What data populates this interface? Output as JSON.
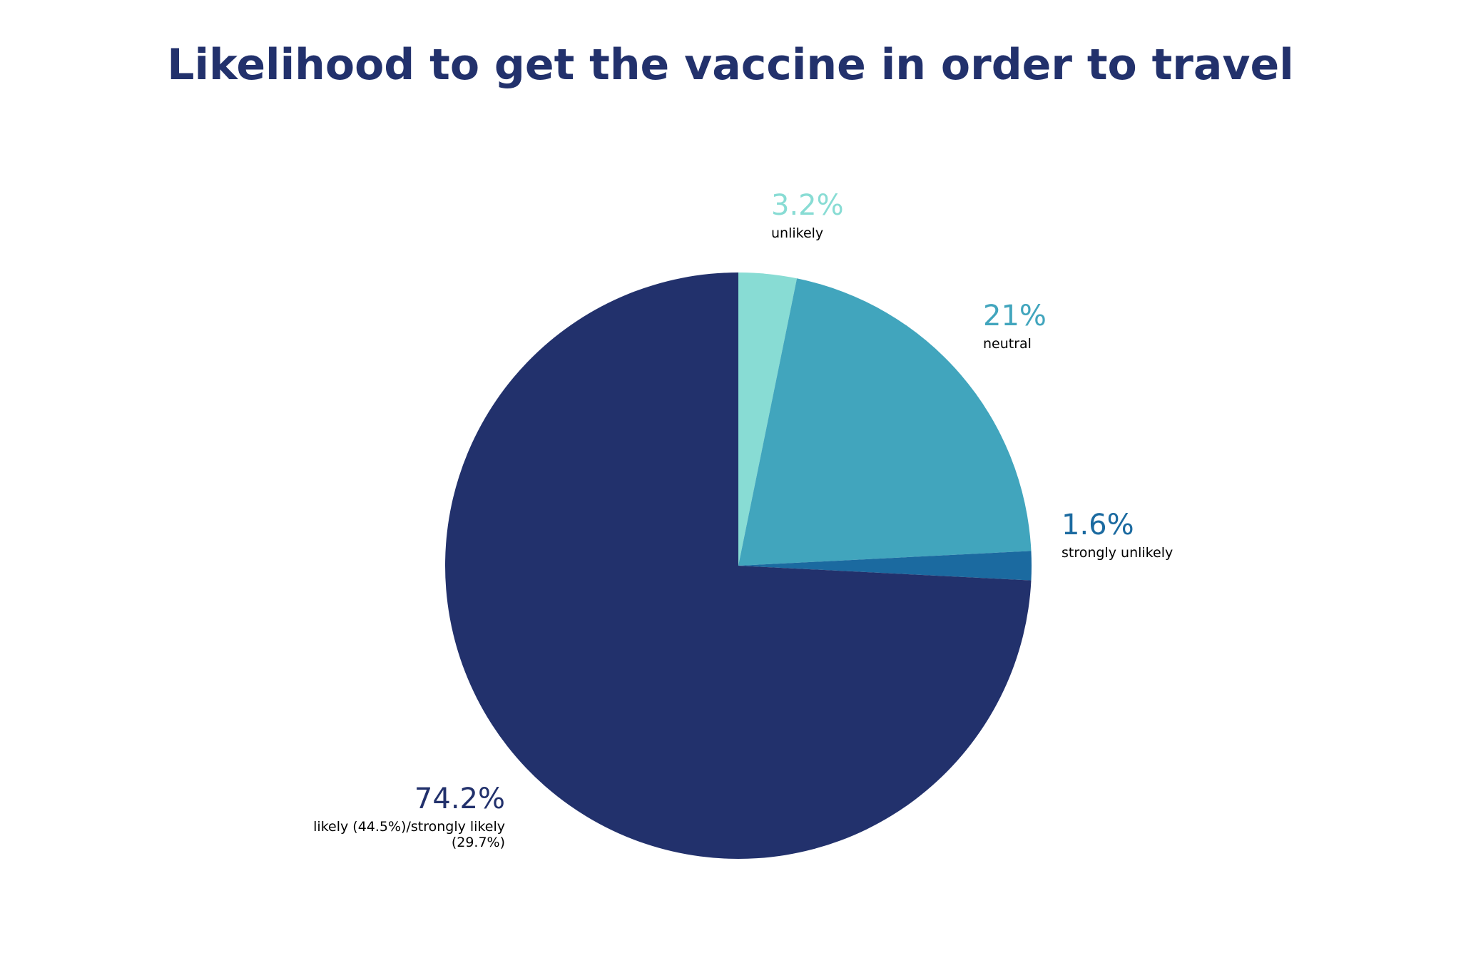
{
  "chart_data": {
    "type": "pie",
    "title": "Likelihood to get the vaccine in order to travel",
    "categories": [
      "unlikely",
      "neutral",
      "strongly unlikely",
      "likely (44.5%)/strongly likely (29.7%)"
    ],
    "values": [
      3.2,
      21,
      1.6,
      74.2
    ],
    "value_labels": [
      "3.2%",
      "21%",
      "1.6%",
      "74.2%"
    ],
    "colors": [
      "#88dcd4",
      "#41a5bd",
      "#1b6aa0",
      "#22316c"
    ]
  }
}
